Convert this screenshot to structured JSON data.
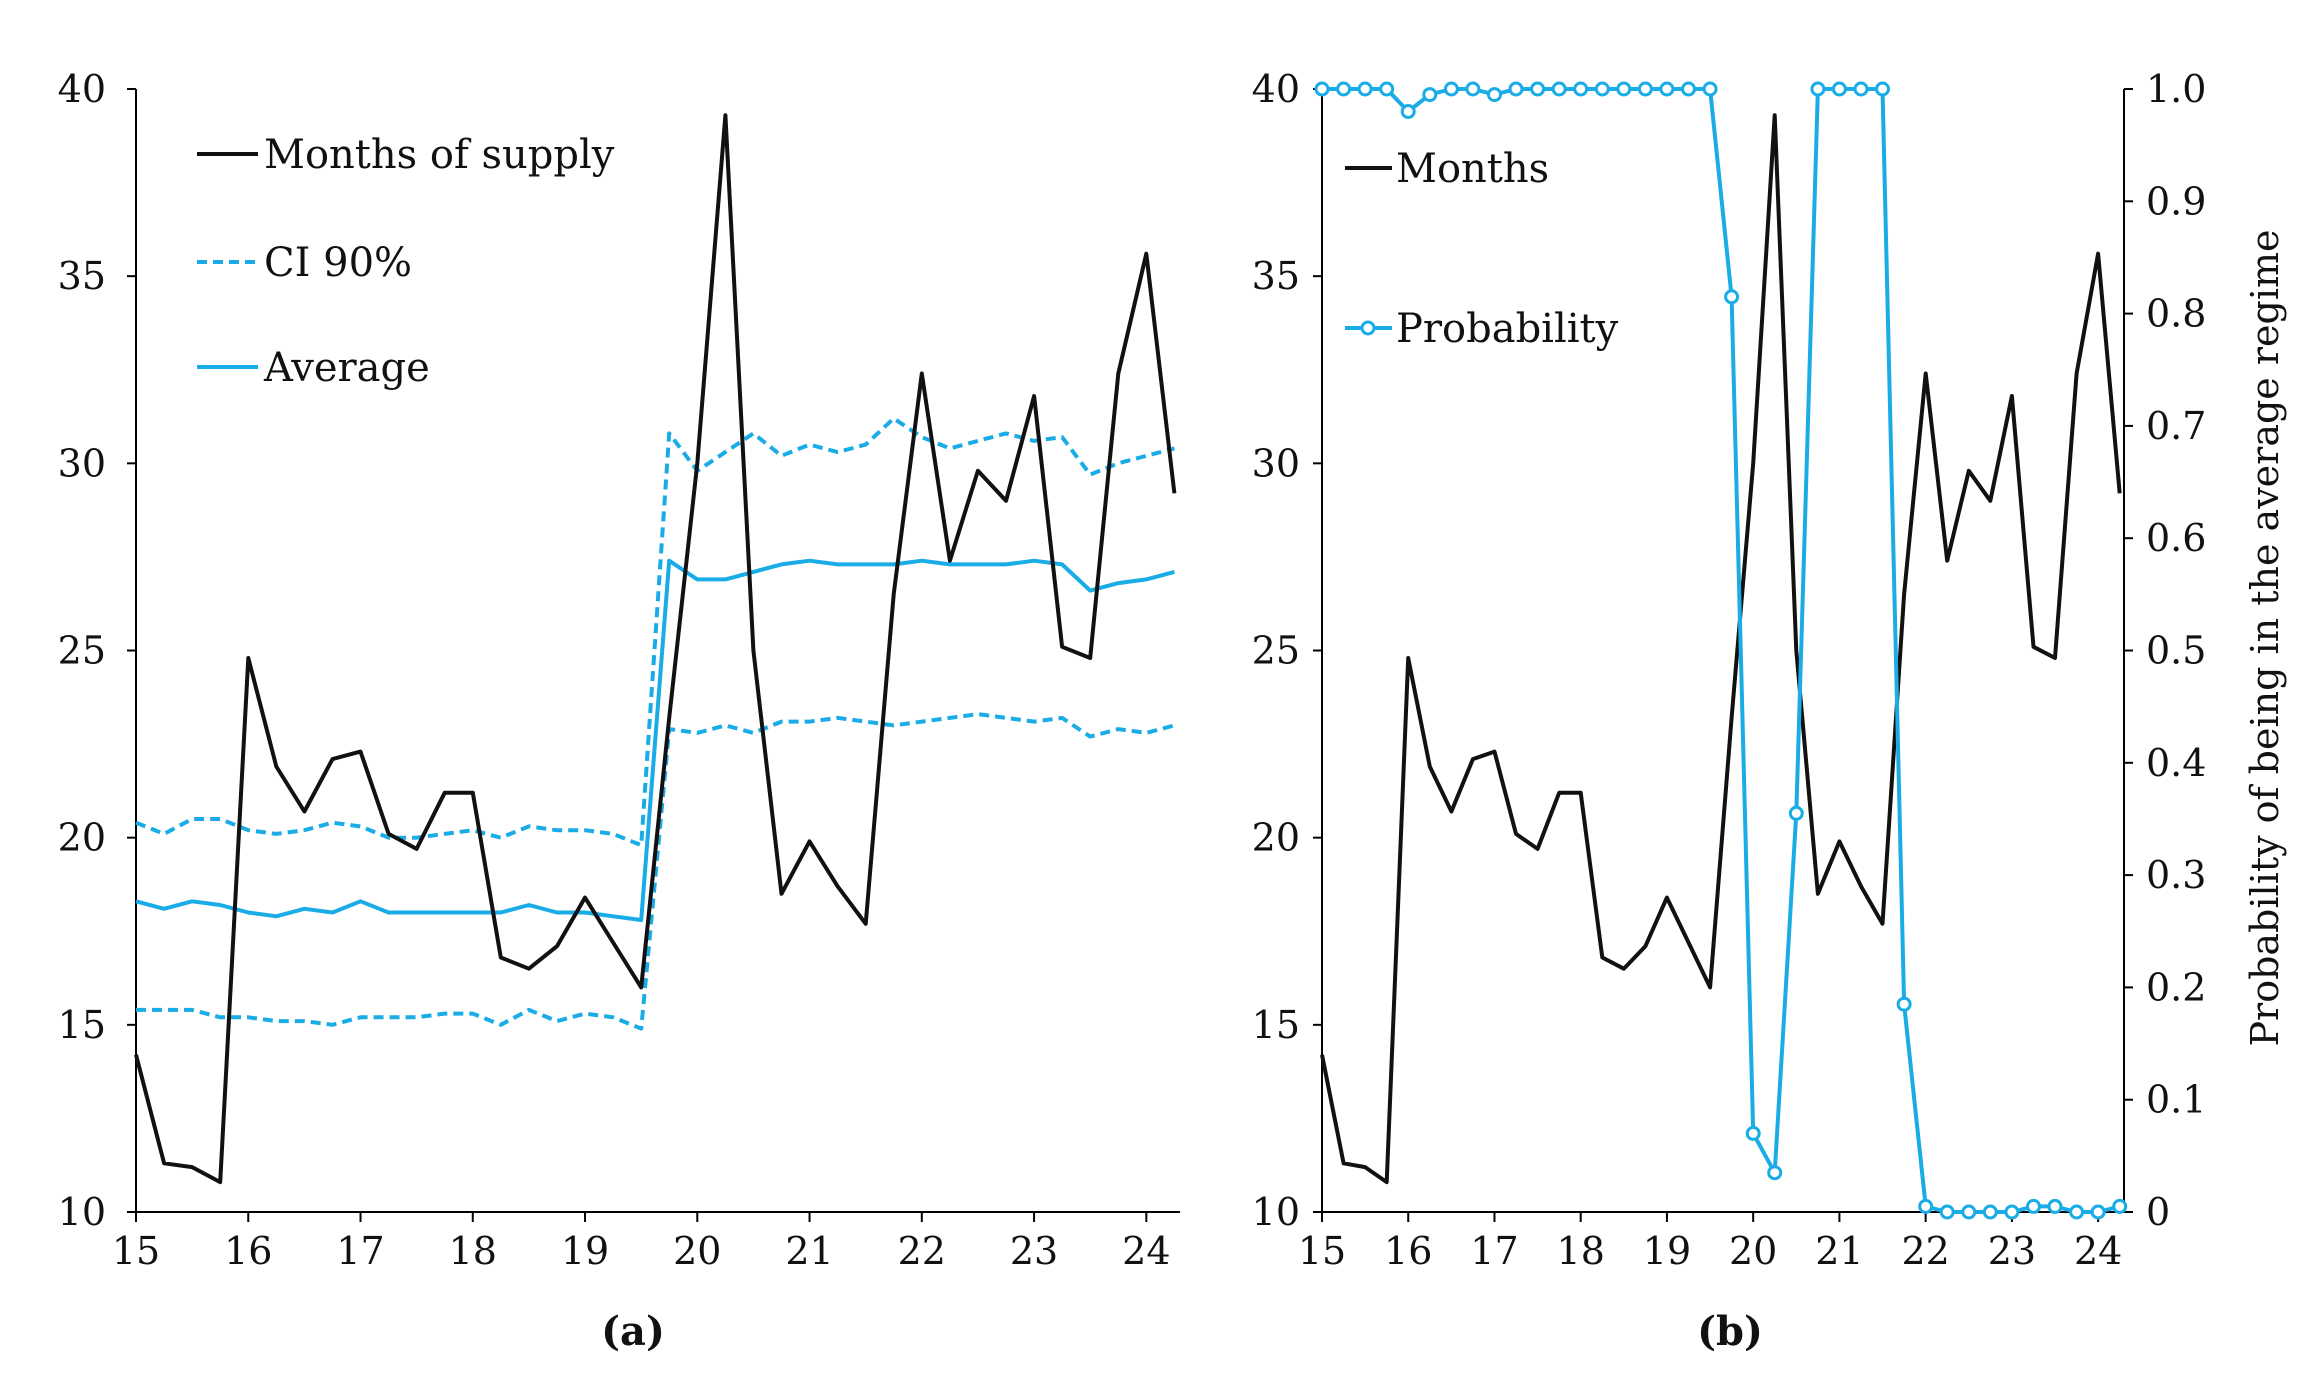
{
  "colors": {
    "black": "#111111",
    "blue": "#1aace6"
  },
  "chart_data": [
    {
      "type": "line",
      "caption": "(a)",
      "xlim": [
        15,
        24.3
      ],
      "ylim": [
        10,
        40
      ],
      "x_ticks": [
        "15",
        "16",
        "17",
        "18",
        "19",
        "20",
        "21",
        "22",
        "23",
        "24"
      ],
      "y_ticks": [
        "10",
        "15",
        "20",
        "25",
        "30",
        "35",
        "40"
      ],
      "x": [
        15,
        15.25,
        15.5,
        15.75,
        16,
        16.25,
        16.5,
        16.75,
        17,
        17.25,
        17.5,
        17.75,
        18,
        18.25,
        18.5,
        18.75,
        19,
        19.25,
        19.5,
        19.75,
        20,
        20.25,
        20.5,
        20.75,
        21,
        21.25,
        21.5,
        21.75,
        22,
        22.25,
        22.5,
        22.75,
        23,
        23.25,
        23.5,
        23.75,
        24,
        24.25
      ],
      "series": [
        {
          "name": "Months of supply",
          "style": "solid",
          "color": "#111111",
          "values": [
            14.2,
            11.3,
            11.2,
            10.8,
            24.8,
            21.9,
            20.7,
            22.1,
            22.3,
            20.1,
            19.7,
            21.2,
            21.2,
            16.8,
            16.5,
            17.1,
            18.4,
            17.2,
            16.0,
            23.2,
            30.0,
            39.3,
            25.0,
            18.5,
            19.9,
            18.7,
            17.7,
            26.5,
            32.4,
            27.4,
            29.8,
            29.0,
            31.8,
            25.1,
            24.8,
            32.4,
            35.6,
            29.2
          ]
        },
        {
          "name": "CI 90%",
          "style": "dashed",
          "color": "#1aace6",
          "values": [
            20.4,
            20.1,
            20.5,
            20.5,
            20.2,
            20.1,
            20.2,
            20.4,
            20.3,
            20.0,
            20.0,
            20.1,
            20.2,
            20.0,
            20.3,
            20.2,
            20.2,
            20.1,
            19.8,
            30.8,
            29.8,
            30.3,
            30.8,
            30.2,
            30.5,
            30.3,
            30.5,
            31.2,
            30.7,
            30.4,
            30.6,
            30.8,
            30.6,
            30.7,
            29.7,
            30.0,
            30.2,
            30.4
          ]
        },
        {
          "name": "CI 90% lower",
          "legend": false,
          "style": "dashed",
          "color": "#1aace6",
          "values": [
            15.4,
            15.4,
            15.4,
            15.2,
            15.2,
            15.1,
            15.1,
            15.0,
            15.2,
            15.2,
            15.2,
            15.3,
            15.3,
            15.0,
            15.4,
            15.1,
            15.3,
            15.2,
            14.9,
            22.9,
            22.8,
            23.0,
            22.8,
            23.1,
            23.1,
            23.2,
            23.1,
            23.0,
            23.1,
            23.2,
            23.3,
            23.2,
            23.1,
            23.2,
            22.7,
            22.9,
            22.8,
            23.0
          ]
        },
        {
          "name": "Average",
          "style": "solid",
          "color": "#1aace6",
          "values": [
            18.3,
            18.1,
            18.3,
            18.2,
            18.0,
            17.9,
            18.1,
            18.0,
            18.3,
            18.0,
            18.0,
            18.0,
            18.0,
            18.0,
            18.2,
            18.0,
            18.0,
            17.9,
            17.8,
            27.4,
            26.9,
            26.9,
            27.1,
            27.3,
            27.4,
            27.3,
            27.3,
            27.3,
            27.4,
            27.3,
            27.3,
            27.3,
            27.4,
            27.3,
            26.6,
            26.8,
            26.9,
            27.1
          ]
        }
      ]
    },
    {
      "type": "line",
      "caption": "(b)",
      "xlim": [
        15,
        24.3
      ],
      "ylim": [
        10,
        40
      ],
      "y2lim": [
        0,
        1
      ],
      "x_ticks": [
        "15",
        "16",
        "17",
        "18",
        "19",
        "20",
        "21",
        "22",
        "23",
        "24"
      ],
      "y_ticks": [
        "10",
        "15",
        "20",
        "25",
        "30",
        "35",
        "40"
      ],
      "y2_ticks": [
        "0",
        "0.1",
        "0.2",
        "0.3",
        "0.4",
        "0.5",
        "0.6",
        "0.7",
        "0.8",
        "0.9",
        "1.0"
      ],
      "y2label": "Probability of being in the average regime",
      "x": [
        15,
        15.25,
        15.5,
        15.75,
        16,
        16.25,
        16.5,
        16.75,
        17,
        17.25,
        17.5,
        17.75,
        18,
        18.25,
        18.5,
        18.75,
        19,
        19.25,
        19.5,
        19.75,
        20,
        20.25,
        20.5,
        20.75,
        21,
        21.25,
        21.5,
        21.75,
        22,
        22.25,
        22.5,
        22.75,
        23,
        23.25,
        23.5,
        23.75,
        24,
        24.25
      ],
      "series": [
        {
          "name": "Months",
          "style": "solid",
          "color": "#111111",
          "axis": "left",
          "values": [
            14.2,
            11.3,
            11.2,
            10.8,
            24.8,
            21.9,
            20.7,
            22.1,
            22.3,
            20.1,
            19.7,
            21.2,
            21.2,
            16.8,
            16.5,
            17.1,
            18.4,
            17.2,
            16.0,
            23.2,
            30.0,
            39.3,
            25.0,
            18.5,
            19.9,
            18.7,
            17.7,
            26.5,
            32.4,
            27.4,
            29.8,
            29.0,
            31.8,
            25.1,
            24.8,
            32.4,
            35.6,
            29.2
          ]
        },
        {
          "name": "Probability",
          "style": "solid-markers",
          "color": "#1aace6",
          "axis": "right",
          "values": [
            1.0,
            1.0,
            1.0,
            1.0,
            0.98,
            0.995,
            1.0,
            1.0,
            0.995,
            1.0,
            1.0,
            1.0,
            1.0,
            1.0,
            1.0,
            1.0,
            1.0,
            1.0,
            1.0,
            0.815,
            0.07,
            0.035,
            0.355,
            1.0,
            1.0,
            1.0,
            1.0,
            0.185,
            0.005,
            0.0,
            0.0,
            0.0,
            0.0,
            0.005,
            0.005,
            0.0,
            0.0,
            0.005
          ]
        }
      ]
    }
  ]
}
